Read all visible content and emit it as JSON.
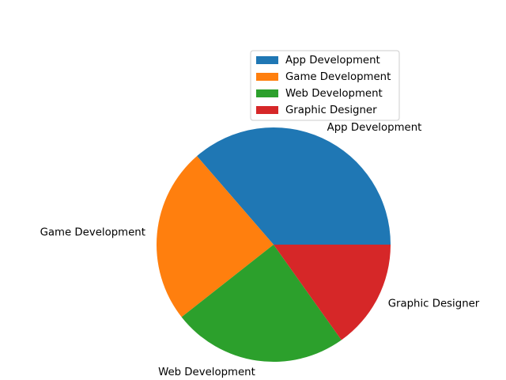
{
  "chart_data": {
    "type": "pie",
    "categories": [
      "App Development",
      "Game Development",
      "Web Development",
      "Graphic Designer"
    ],
    "values": [
      36,
      24,
      24,
      15
    ],
    "colors": [
      "#1f77b4",
      "#ff7f0e",
      "#2ca02c",
      "#d62728"
    ],
    "start_angle_deg": 0,
    "direction": "counterclockwise",
    "legend": {
      "placement": "upper-right",
      "entries": [
        "App Development",
        "Game Development",
        "Web Development",
        "Graphic Designer"
      ]
    }
  }
}
